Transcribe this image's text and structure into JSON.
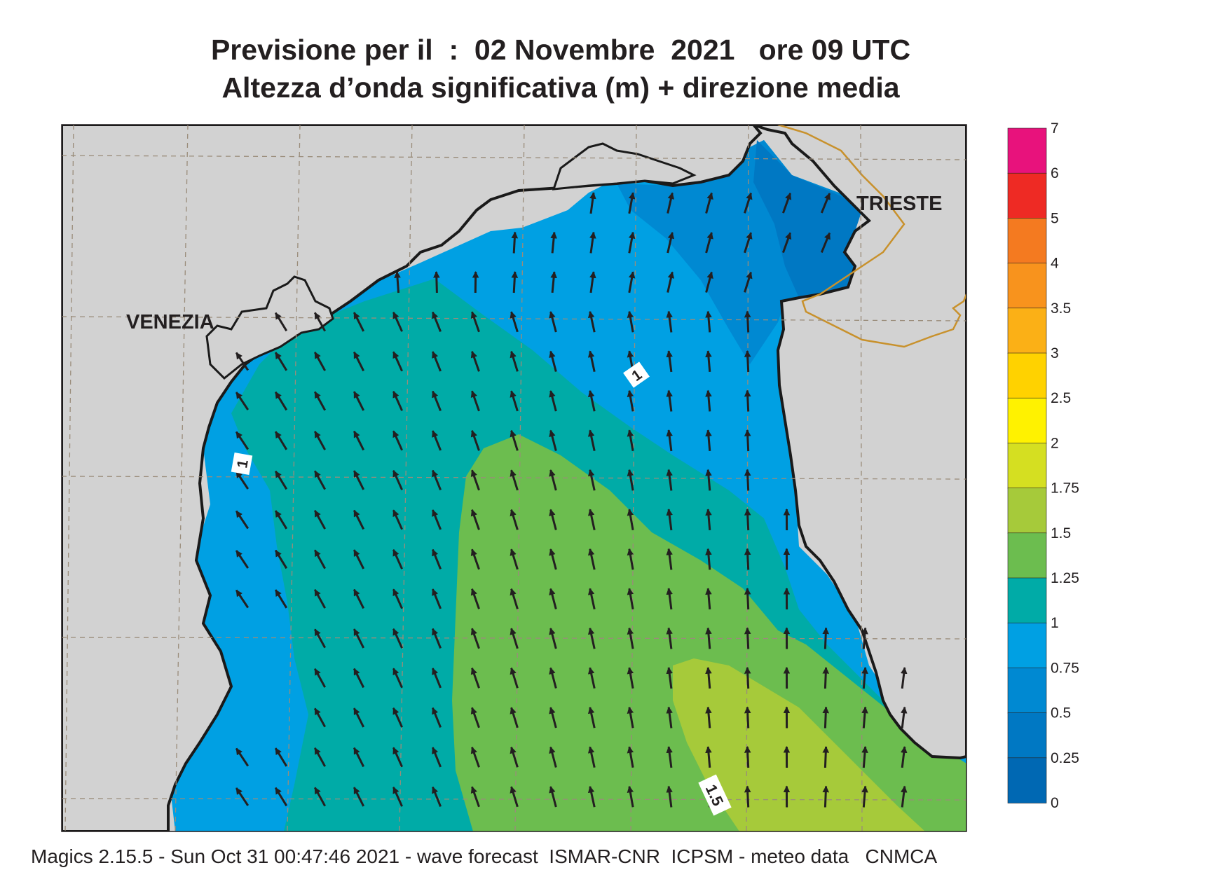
{
  "title_line1": "Previsione per il  :  02 Novembre  2021   ore 09 UTC",
  "title_line2": "Altezza d’onda significativa (m) + direzione media",
  "footer": "Magics 2.15.5 - Sun Oct 31 00:47:46 2021 - wave forecast  ISMAR-CNR  ICPSM - meteo data   CNMCA",
  "cities": [
    {
      "name": "VENEZIA"
    },
    {
      "name": "TRIESTE"
    }
  ],
  "contour_labels": [
    "1",
    "1",
    "1.5"
  ],
  "colors": {
    "land": "#d2d2d2",
    "coast": "#1a1a1a",
    "border": "#c8912c",
    "arrow": "#231f20"
  },
  "legend": {
    "unit": "m",
    "levels": [
      {
        "label": "7",
        "color": "#e8127c"
      },
      {
        "label": "6",
        "color": "#e41a4d"
      },
      {
        "label": "5",
        "color": "#ee2a24"
      },
      {
        "label": "4",
        "color": "#f47a20"
      },
      {
        "label": "3.5",
        "color": "#f8931d"
      },
      {
        "label": "3",
        "color": "#fbb016"
      },
      {
        "label": "2.5",
        "color": "#ffd200"
      },
      {
        "label": "2",
        "color": "#fff200"
      },
      {
        "label": "1.75",
        "color": "#d5df21"
      },
      {
        "label": "1.5",
        "color": "#a6ca3a"
      },
      {
        "label": "1.25",
        "color": "#6cbd4f"
      },
      {
        "label": "1",
        "color": "#00aba7"
      },
      {
        "label": "0.75",
        "color": "#00a0e3"
      },
      {
        "label": "0.5",
        "color": "#0089d2"
      },
      {
        "label": "0.25",
        "color": "#0078c3"
      },
      {
        "label": "0",
        "color": "#0068b3"
      }
    ]
  },
  "wave_direction": "NNW"
}
